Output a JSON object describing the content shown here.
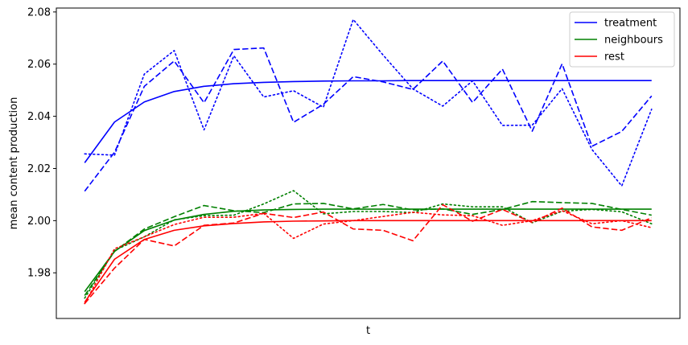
{
  "chart_data": {
    "type": "line",
    "title": "",
    "xlabel": "t",
    "ylabel": "mean content production",
    "ylim": [
      1.9625,
      2.0815
    ],
    "xlim": [
      -0.95,
      19.95
    ],
    "yticks": [
      1.98,
      2.0,
      2.02,
      2.04,
      2.06,
      2.08
    ],
    "ytick_labels": [
      "1.98",
      "2.00",
      "2.02",
      "2.04",
      "2.06",
      "2.08"
    ],
    "grid": false,
    "legend_position": "top-right",
    "legend": [
      {
        "label": "treatment",
        "color": "#0000ff"
      },
      {
        "label": "neighbours",
        "color": "#008000"
      },
      {
        "label": "rest",
        "color": "#ff0000"
      }
    ],
    "x": [
      0,
      1,
      2,
      3,
      4,
      5,
      6,
      7,
      8,
      9,
      10,
      11,
      12,
      13,
      14,
      15,
      16,
      17,
      18,
      19
    ],
    "series": [
      {
        "name": "treatment",
        "color": "#0000ff",
        "style": "solid",
        "values": [
          2.0222,
          2.0378,
          2.0455,
          2.0495,
          2.0515,
          2.0525,
          2.053,
          2.0533,
          2.0535,
          2.0536,
          2.0536,
          2.0537,
          2.0537,
          2.0537,
          2.0537,
          2.0537,
          2.0537,
          2.0537,
          2.0537,
          2.0537
        ]
      },
      {
        "color": "#0000ff",
        "style": "dashed",
        "values": [
          2.0113,
          2.0262,
          2.0515,
          2.0612,
          2.0452,
          2.0656,
          2.0662,
          2.0377,
          2.0446,
          2.0552,
          2.0532,
          2.0503,
          2.0612,
          2.0453,
          2.0581,
          2.0343,
          2.0601,
          2.0285,
          2.0342,
          2.0478
        ]
      },
      {
        "color": "#0000ff",
        "style": "dotted",
        "values": [
          2.0256,
          2.0251,
          2.0562,
          2.0652,
          2.0348,
          2.0632,
          2.0474,
          2.0498,
          2.0435,
          2.0771,
          2.0635,
          2.0505,
          2.0439,
          2.0536,
          2.0365,
          2.0366,
          2.0506,
          2.0273,
          2.0133,
          2.0427
        ]
      },
      {
        "name": "neighbours",
        "color": "#008000",
        "style": "solid",
        "values": [
          1.9728,
          1.9882,
          1.9962,
          2.0002,
          2.0024,
          2.0036,
          2.0041,
          2.0043,
          2.0044,
          2.0044,
          2.0044,
          2.0044,
          2.0044,
          2.0044,
          2.0044,
          2.0044,
          2.0044,
          2.0044,
          2.0044,
          2.0044
        ]
      },
      {
        "color": "#008000",
        "style": "dashed",
        "values": [
          1.9713,
          1.9882,
          1.9968,
          2.0015,
          2.0058,
          2.0038,
          2.0031,
          2.0064,
          2.0066,
          2.0045,
          2.0062,
          2.0041,
          2.0045,
          2.0024,
          2.0043,
          2.0073,
          2.0069,
          2.0066,
          2.0043,
          2.0021
        ]
      },
      {
        "color": "#008000",
        "style": "dotted",
        "values": [
          1.9703,
          1.9886,
          1.9938,
          2.0003,
          2.0019,
          2.0021,
          2.0064,
          2.0115,
          2.0026,
          2.0035,
          2.0035,
          2.0031,
          2.0064,
          2.0053,
          2.0053,
          1.9992,
          2.0036,
          2.0043,
          2.0034,
          1.9988
        ]
      },
      {
        "name": "rest",
        "color": "#ff0000",
        "style": "solid",
        "values": [
          1.9687,
          1.9852,
          1.9928,
          1.9963,
          1.998,
          1.9989,
          1.9995,
          1.9998,
          1.9999,
          2.0,
          2.0,
          2.0,
          2.0,
          2.0,
          2.0,
          2.0,
          2.0,
          2.0,
          2.0,
          2.0
        ]
      },
      {
        "color": "#ff0000",
        "style": "dashed",
        "values": [
          1.9682,
          1.9818,
          1.9928,
          1.9903,
          1.9982,
          1.9991,
          2.0028,
          2.0012,
          2.0033,
          1.9968,
          1.9963,
          1.9923,
          2.0061,
          1.9998,
          2.0043,
          1.9993,
          2.0048,
          1.9976,
          1.9963,
          2.0011
        ]
      },
      {
        "color": "#ff0000",
        "style": "dotted",
        "values": [
          1.9682,
          1.9892,
          1.9938,
          1.9985,
          2.0013,
          2.0013,
          2.0028,
          1.9932,
          1.9987,
          2.0,
          2.0016,
          2.0032,
          2.0022,
          2.0019,
          1.9982,
          2.0,
          2.0038,
          1.9988,
          2.0,
          1.9973
        ]
      }
    ]
  }
}
